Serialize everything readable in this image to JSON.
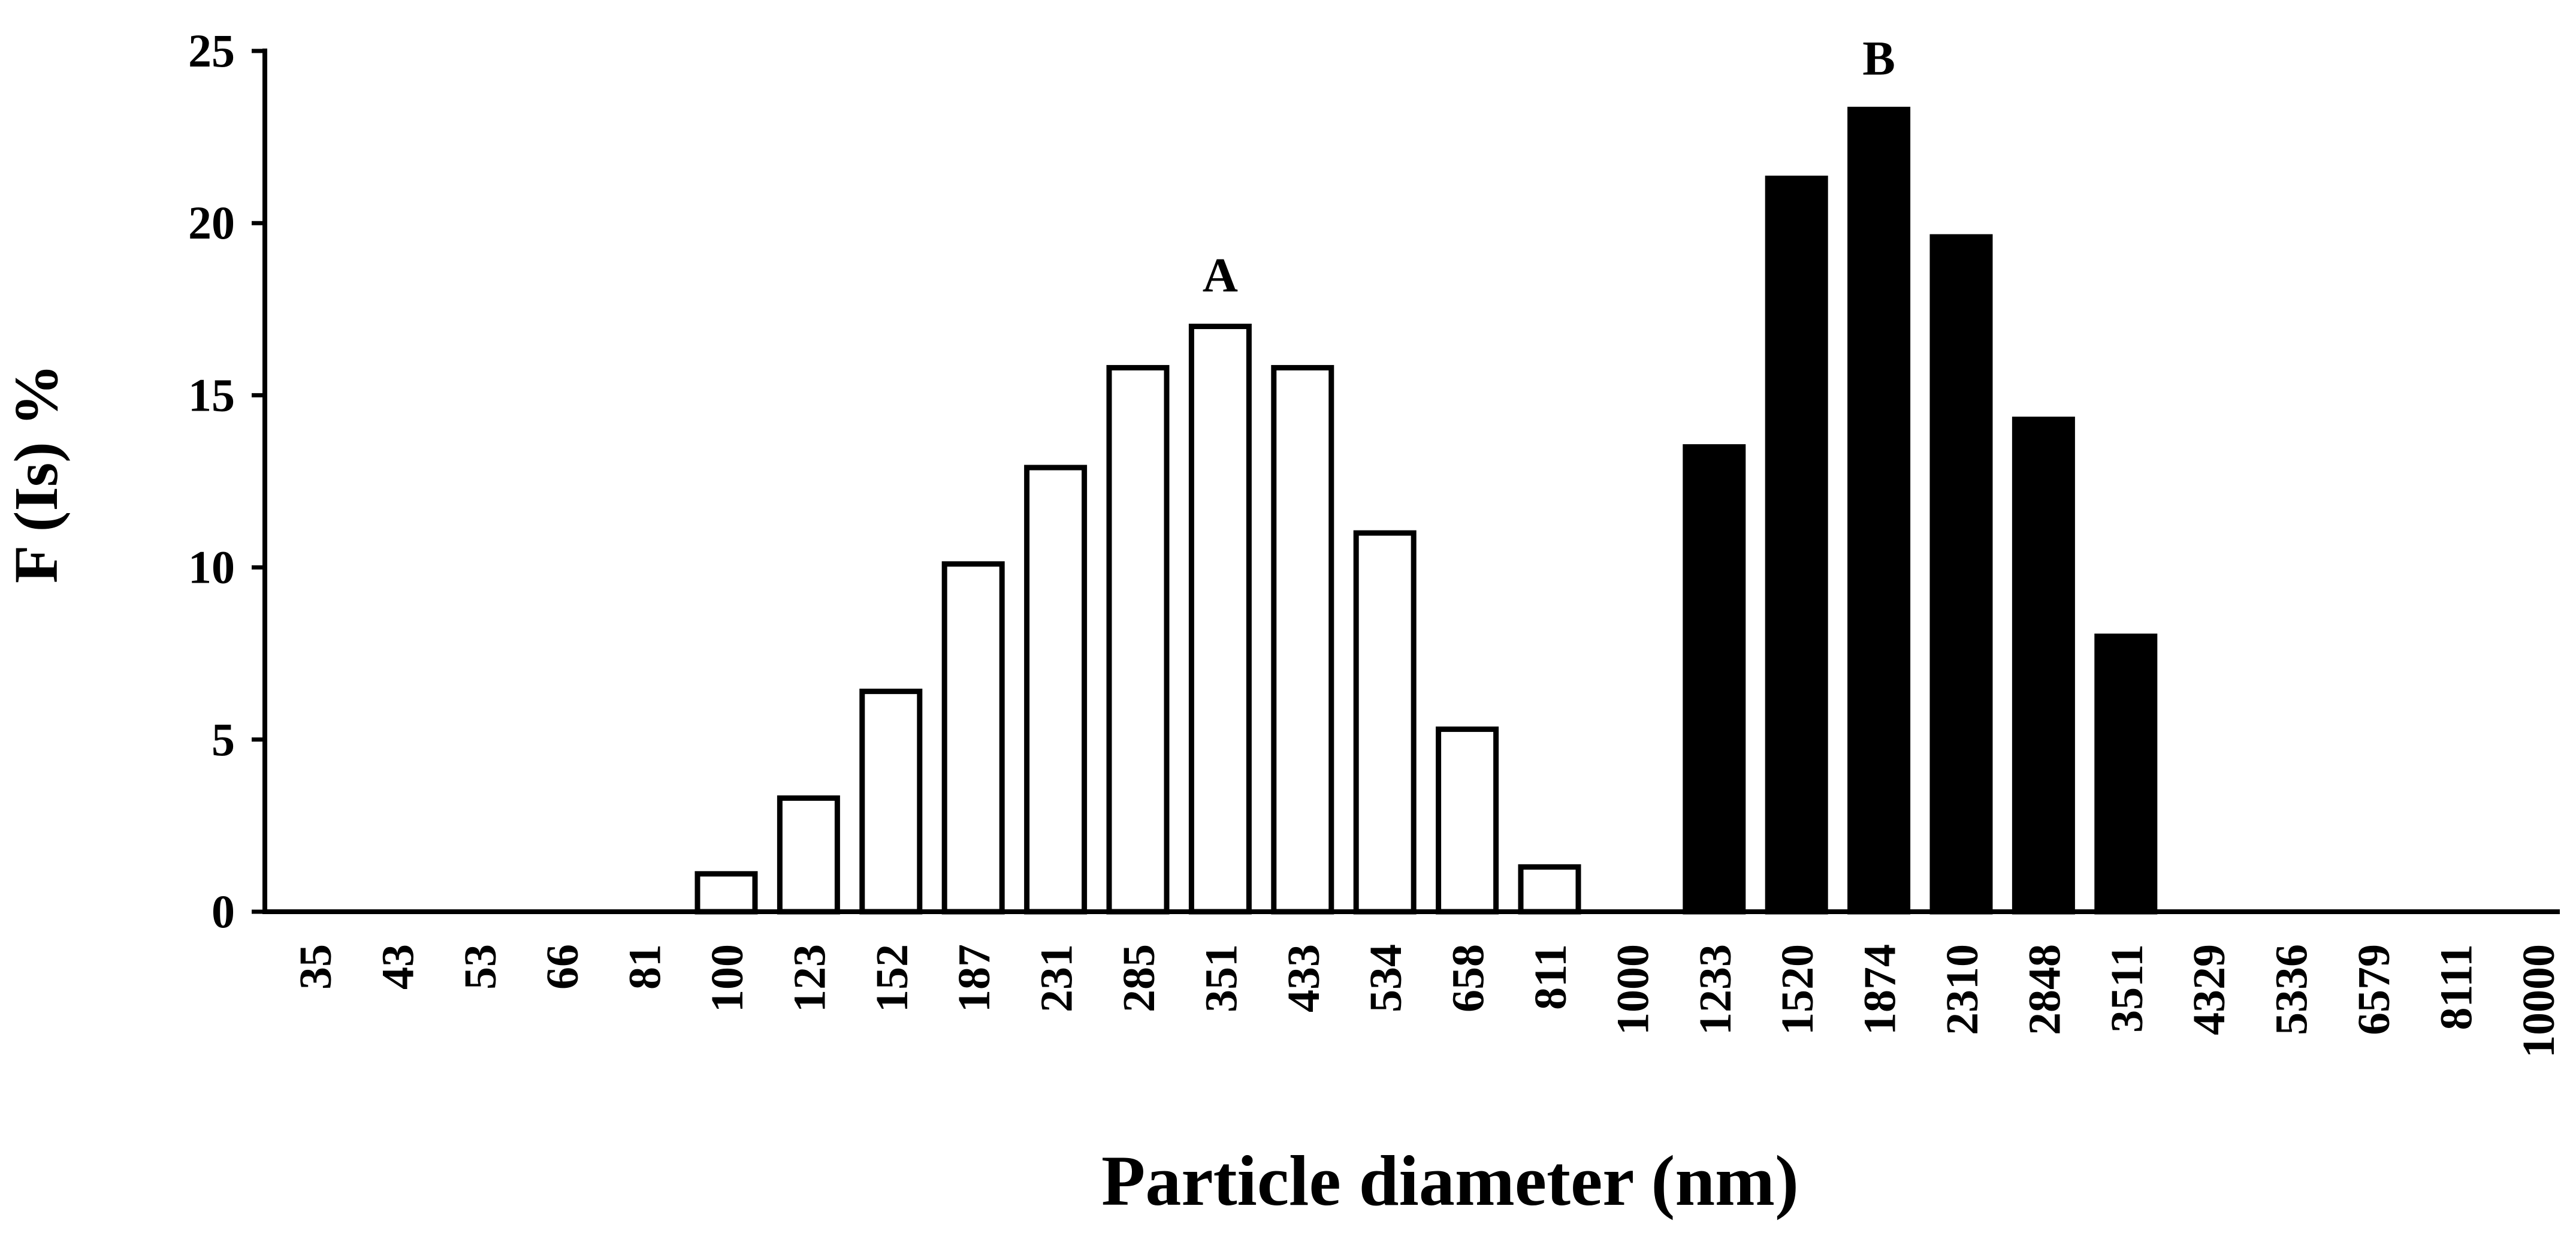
{
  "chart_data": {
    "type": "bar",
    "title": "",
    "xlabel": "Particle diameter (nm)",
    "ylabel": "F (Is) %",
    "ylim": [
      0,
      25
    ],
    "yticks": [
      0,
      5,
      10,
      15,
      20,
      25
    ],
    "grid": false,
    "categories": [
      "35",
      "43",
      "53",
      "66",
      "81",
      "100",
      "123",
      "152",
      "187",
      "231",
      "285",
      "351",
      "433",
      "534",
      "658",
      "811",
      "1000",
      "1233",
      "1520",
      "1874",
      "2310",
      "2848",
      "3511",
      "4329",
      "5336",
      "6579",
      "8111",
      "10000"
    ],
    "series": [
      {
        "fill": "#ffffff",
        "values": [
          0,
          0,
          0,
          0,
          0,
          1.1,
          3.3,
          6.4,
          10.1,
          12.9,
          15.8,
          17.0,
          15.8,
          11.0,
          5.3,
          1.3,
          0,
          0,
          0,
          0,
          0,
          0,
          0,
          0,
          0,
          0,
          0,
          0
        ]
      },
      {
        "fill": "#000000",
        "values": [
          0,
          0,
          0,
          0,
          0,
          0,
          0,
          0,
          0,
          0,
          0,
          0,
          0,
          0,
          0,
          0,
          0,
          13.5,
          21.3,
          23.3,
          19.6,
          14.3,
          8.0,
          0,
          0,
          0,
          0,
          0
        ]
      }
    ],
    "annotations": [
      {
        "text": "A",
        "category": "351",
        "value": 17.0
      },
      {
        "text": "B",
        "category": "1874",
        "value": 23.3
      }
    ]
  }
}
